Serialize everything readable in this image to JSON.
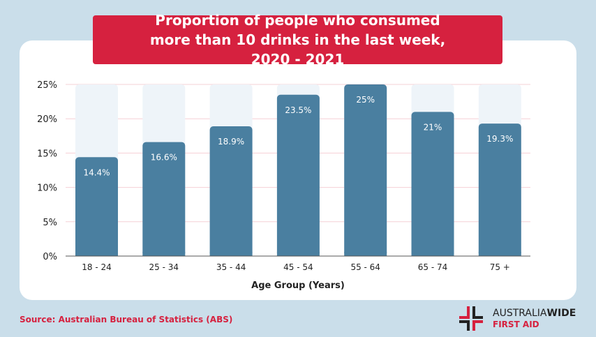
{
  "chart_data": {
    "type": "bar",
    "title": "Proportion of people who consumed more than 10 drinks in the last week, 2020 - 2021",
    "xlabel": "Age Group (Years)",
    "ylabel": "",
    "categories": [
      "18 - 24",
      "25 - 34",
      "35 - 44",
      "45 - 54",
      "55 - 64",
      "65 - 74",
      "75 +"
    ],
    "values": [
      14.4,
      16.6,
      18.9,
      23.5,
      25,
      21,
      19.3
    ],
    "data_labels": [
      "14.4%",
      "16.6%",
      "18.9%",
      "23.5%",
      "25%",
      "21%",
      "19.3%"
    ],
    "yticks": [
      "0%",
      "5%",
      "10%",
      "15%",
      "20%",
      "25%"
    ],
    "ylim": [
      0,
      25
    ],
    "grid": true,
    "colors": {
      "bar": "#4a7fa0",
      "bar_background": "#eef4f9",
      "grid": "#f6d0d6",
      "accent": "#d6213f"
    }
  },
  "source": "Source: Australian Bureau of Statistics (ABS)",
  "logo": {
    "line1a": "AUSTRALIA",
    "line1b": "WIDE",
    "line2": "FIRST AID"
  }
}
